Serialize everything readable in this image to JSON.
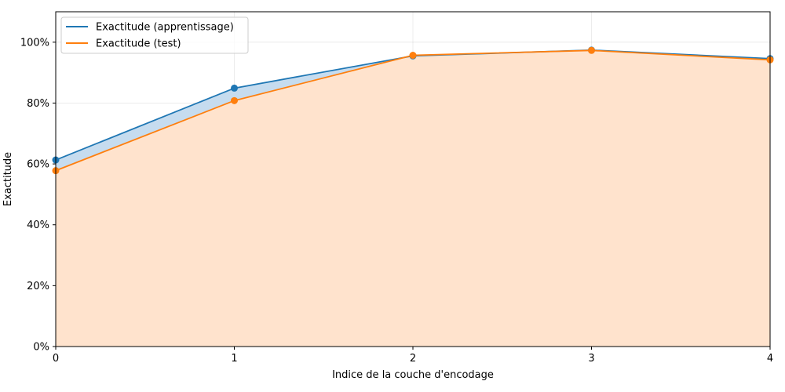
{
  "chart_data": {
    "type": "line",
    "xlabel": "Indice de la couche d'encodage",
    "ylabel": "Exactitude",
    "x": [
      0,
      1,
      2,
      3,
      4
    ],
    "xticks": [
      0,
      1,
      2,
      3,
      4
    ],
    "xlim": [
      0,
      4
    ],
    "ylim": [
      0,
      1.1
    ],
    "yticks": [
      0,
      0.2,
      0.4,
      0.6,
      0.8,
      1.0
    ],
    "ytick_labels": [
      "0%",
      "20%",
      "40%",
      "60%",
      "80%",
      "100%"
    ],
    "grid": true,
    "legend_position": "top-left",
    "series": [
      {
        "name": "Exactitude (apprentissage)",
        "color": "#1f77b4",
        "fill_color": "#c6dcef",
        "values": [
          0.613,
          0.849,
          0.955,
          0.974,
          0.946
        ]
      },
      {
        "name": "Exactitude (test)",
        "color": "#ff7f0e",
        "fill_color": "#ffe3cd",
        "values": [
          0.578,
          0.808,
          0.957,
          0.973,
          0.942
        ]
      }
    ]
  }
}
